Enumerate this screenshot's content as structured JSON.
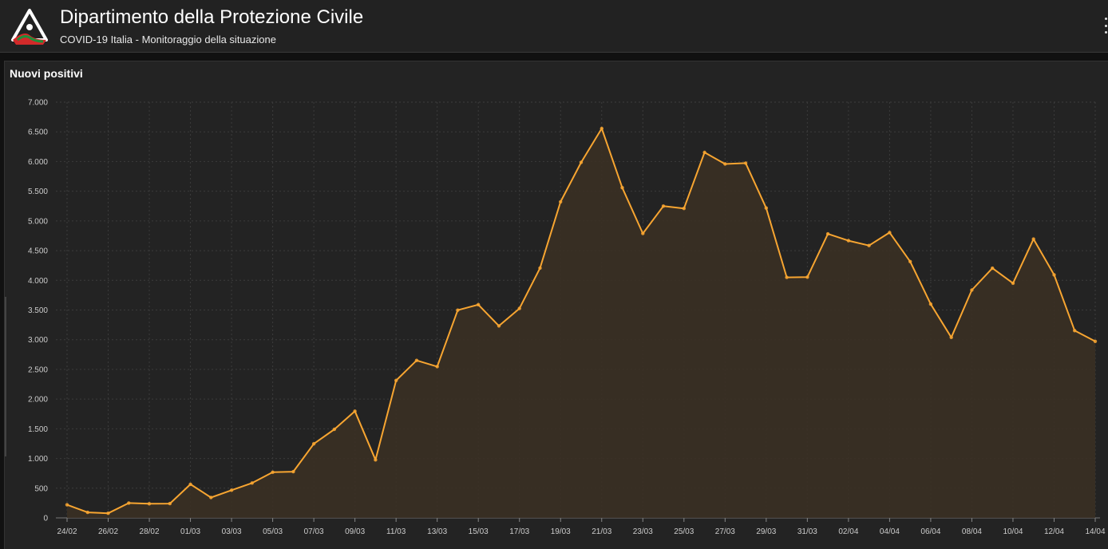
{
  "header": {
    "title": "Dipartimento della Protezione Civile",
    "subtitle": "COVID-19 Italia - Monitoraggio della situazione",
    "logo_icon": "protezione-civile-logo",
    "menu_icon": "more-vertical-icon"
  },
  "panel": {
    "title": "Nuovi positivi"
  },
  "colors": {
    "line": "#f7a531",
    "area": "#3a3024",
    "grid": "#3c3c3c",
    "background": "#232323"
  },
  "chart_data": {
    "type": "area",
    "title": "Nuovi positivi",
    "xlabel": "",
    "ylabel": "",
    "ylim": [
      0,
      7000
    ],
    "y_ticks": [
      0,
      500,
      1000,
      1500,
      2000,
      2500,
      3000,
      3500,
      4000,
      4500,
      5000,
      5500,
      6000,
      6500,
      7000
    ],
    "y_tick_labels": [
      "0",
      "500",
      "1.000",
      "1.500",
      "2.000",
      "2.500",
      "3.000",
      "3.500",
      "4.000",
      "4.500",
      "5.000",
      "5.500",
      "6.000",
      "6.500",
      "7.000"
    ],
    "x_tick_labels": [
      "24/02",
      "26/02",
      "28/02",
      "01/03",
      "03/03",
      "05/03",
      "07/03",
      "09/03",
      "11/03",
      "13/03",
      "15/03",
      "17/03",
      "19/03",
      "21/03",
      "23/03",
      "25/03",
      "27/03",
      "29/03",
      "31/03",
      "02/04",
      "04/04",
      "06/04",
      "08/04",
      "10/04",
      "12/04",
      "14/04"
    ],
    "grid": true,
    "legend": "none",
    "series": [
      {
        "x": [
          "24/02",
          "25/02",
          "26/02",
          "27/02",
          "28/02",
          "29/02",
          "01/03",
          "02/03",
          "03/03",
          "04/03",
          "05/03",
          "06/03",
          "07/03",
          "08/03",
          "09/03",
          "10/03",
          "11/03",
          "12/03",
          "13/03",
          "14/03",
          "15/03",
          "16/03",
          "17/03",
          "18/03",
          "19/03",
          "20/03",
          "21/03",
          "22/03",
          "23/03",
          "24/03",
          "25/03",
          "26/03",
          "27/03",
          "28/03",
          "29/03",
          "30/03",
          "31/03",
          "01/04",
          "02/04",
          "03/04",
          "04/04",
          "05/04",
          "06/04",
          "07/04",
          "08/04",
          "09/04",
          "10/04",
          "11/04",
          "12/04",
          "13/04",
          "14/04"
        ],
        "values": [
          221,
          93,
          78,
          250,
          238,
          240,
          566,
          342,
          466,
          587,
          769,
          778,
          1247,
          1492,
          1797,
          977,
          2313,
          2651,
          2547,
          3497,
          3590,
          3233,
          3526,
          4207,
          5322,
          5986,
          6557,
          5560,
          4789,
          5249,
          5210,
          6153,
          5959,
          5974,
          5217,
          4050,
          4053,
          4782,
          4668,
          4585,
          4805,
          4316,
          3599,
          3039,
          3836,
          4204,
          3951,
          4694,
          4092,
          3153,
          2972
        ]
      }
    ]
  }
}
